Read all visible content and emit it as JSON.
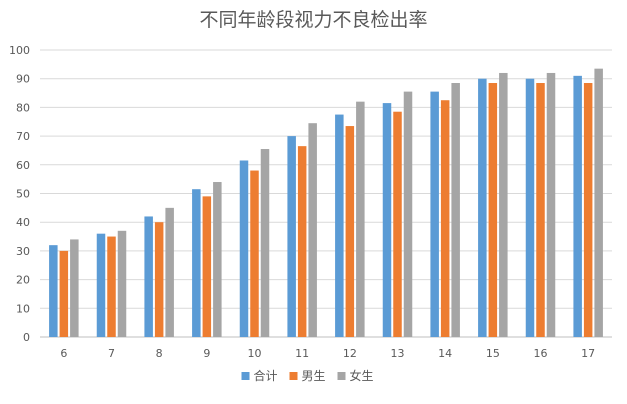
{
  "chart_data": {
    "type": "bar",
    "title": "不同年龄段视力不良检出率",
    "xlabel": "",
    "ylabel": "",
    "ylim": [
      0,
      100
    ],
    "yticks": [
      0,
      10,
      20,
      30,
      40,
      50,
      60,
      70,
      80,
      90,
      100
    ],
    "categories": [
      "6",
      "7",
      "8",
      "9",
      "10",
      "11",
      "12",
      "13",
      "14",
      "15",
      "16",
      "17"
    ],
    "series": [
      {
        "name": "合计",
        "color": "#5B9BD5",
        "values": [
          32,
          36,
          42,
          51.5,
          61.5,
          70,
          77.5,
          81.5,
          85.5,
          90,
          90,
          91
        ]
      },
      {
        "name": "男生",
        "color": "#ED7D31",
        "values": [
          30,
          35,
          40,
          49,
          58,
          66.5,
          73.5,
          78.5,
          82.5,
          88.5,
          88.5,
          88.5
        ]
      },
      {
        "name": "女生",
        "color": "#A5A5A5",
        "values": [
          34,
          37,
          45,
          54,
          65.5,
          74.5,
          82,
          85.5,
          88.5,
          92,
          92,
          93.5
        ]
      }
    ],
    "grid": true,
    "legend_position": "bottom"
  }
}
